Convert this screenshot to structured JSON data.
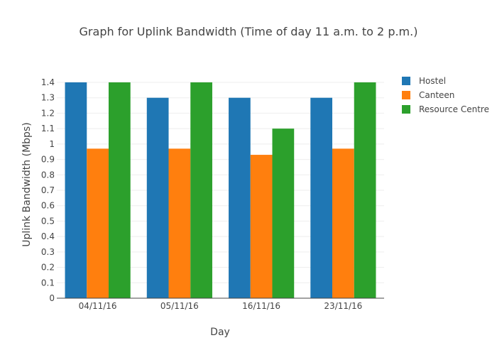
{
  "chart_data": {
    "type": "bar",
    "title": "Graph for Uplink Bandwidth (Time of day  11 a.m. to  2 p.m.)",
    "xlabel": "Day",
    "ylabel": "Uplink Bandwidth (Mbps)",
    "categories": [
      "04/11/16",
      "05/11/16",
      "16/11/16",
      "23/11/16"
    ],
    "ylim": [
      0,
      1.4
    ],
    "yticks": [
      "0",
      "0.1",
      "0.2",
      "0.3",
      "0.4",
      "0.5",
      "0.6",
      "0.7",
      "0.8",
      "0.9",
      "1",
      "1.1",
      "1.2",
      "1.3",
      "1.4"
    ],
    "grid": true,
    "legend_position": "top-right",
    "series": [
      {
        "name": "Hostel",
        "color": "#1f77b4",
        "values": [
          1.4,
          1.3,
          1.3,
          1.3
        ]
      },
      {
        "name": "Canteen",
        "color": "#ff7f0e",
        "values": [
          0.97,
          0.97,
          0.93,
          0.97
        ]
      },
      {
        "name": "Resource Centre",
        "color": "#2ca02c",
        "values": [
          1.4,
          1.4,
          1.1,
          1.4
        ]
      }
    ]
  }
}
